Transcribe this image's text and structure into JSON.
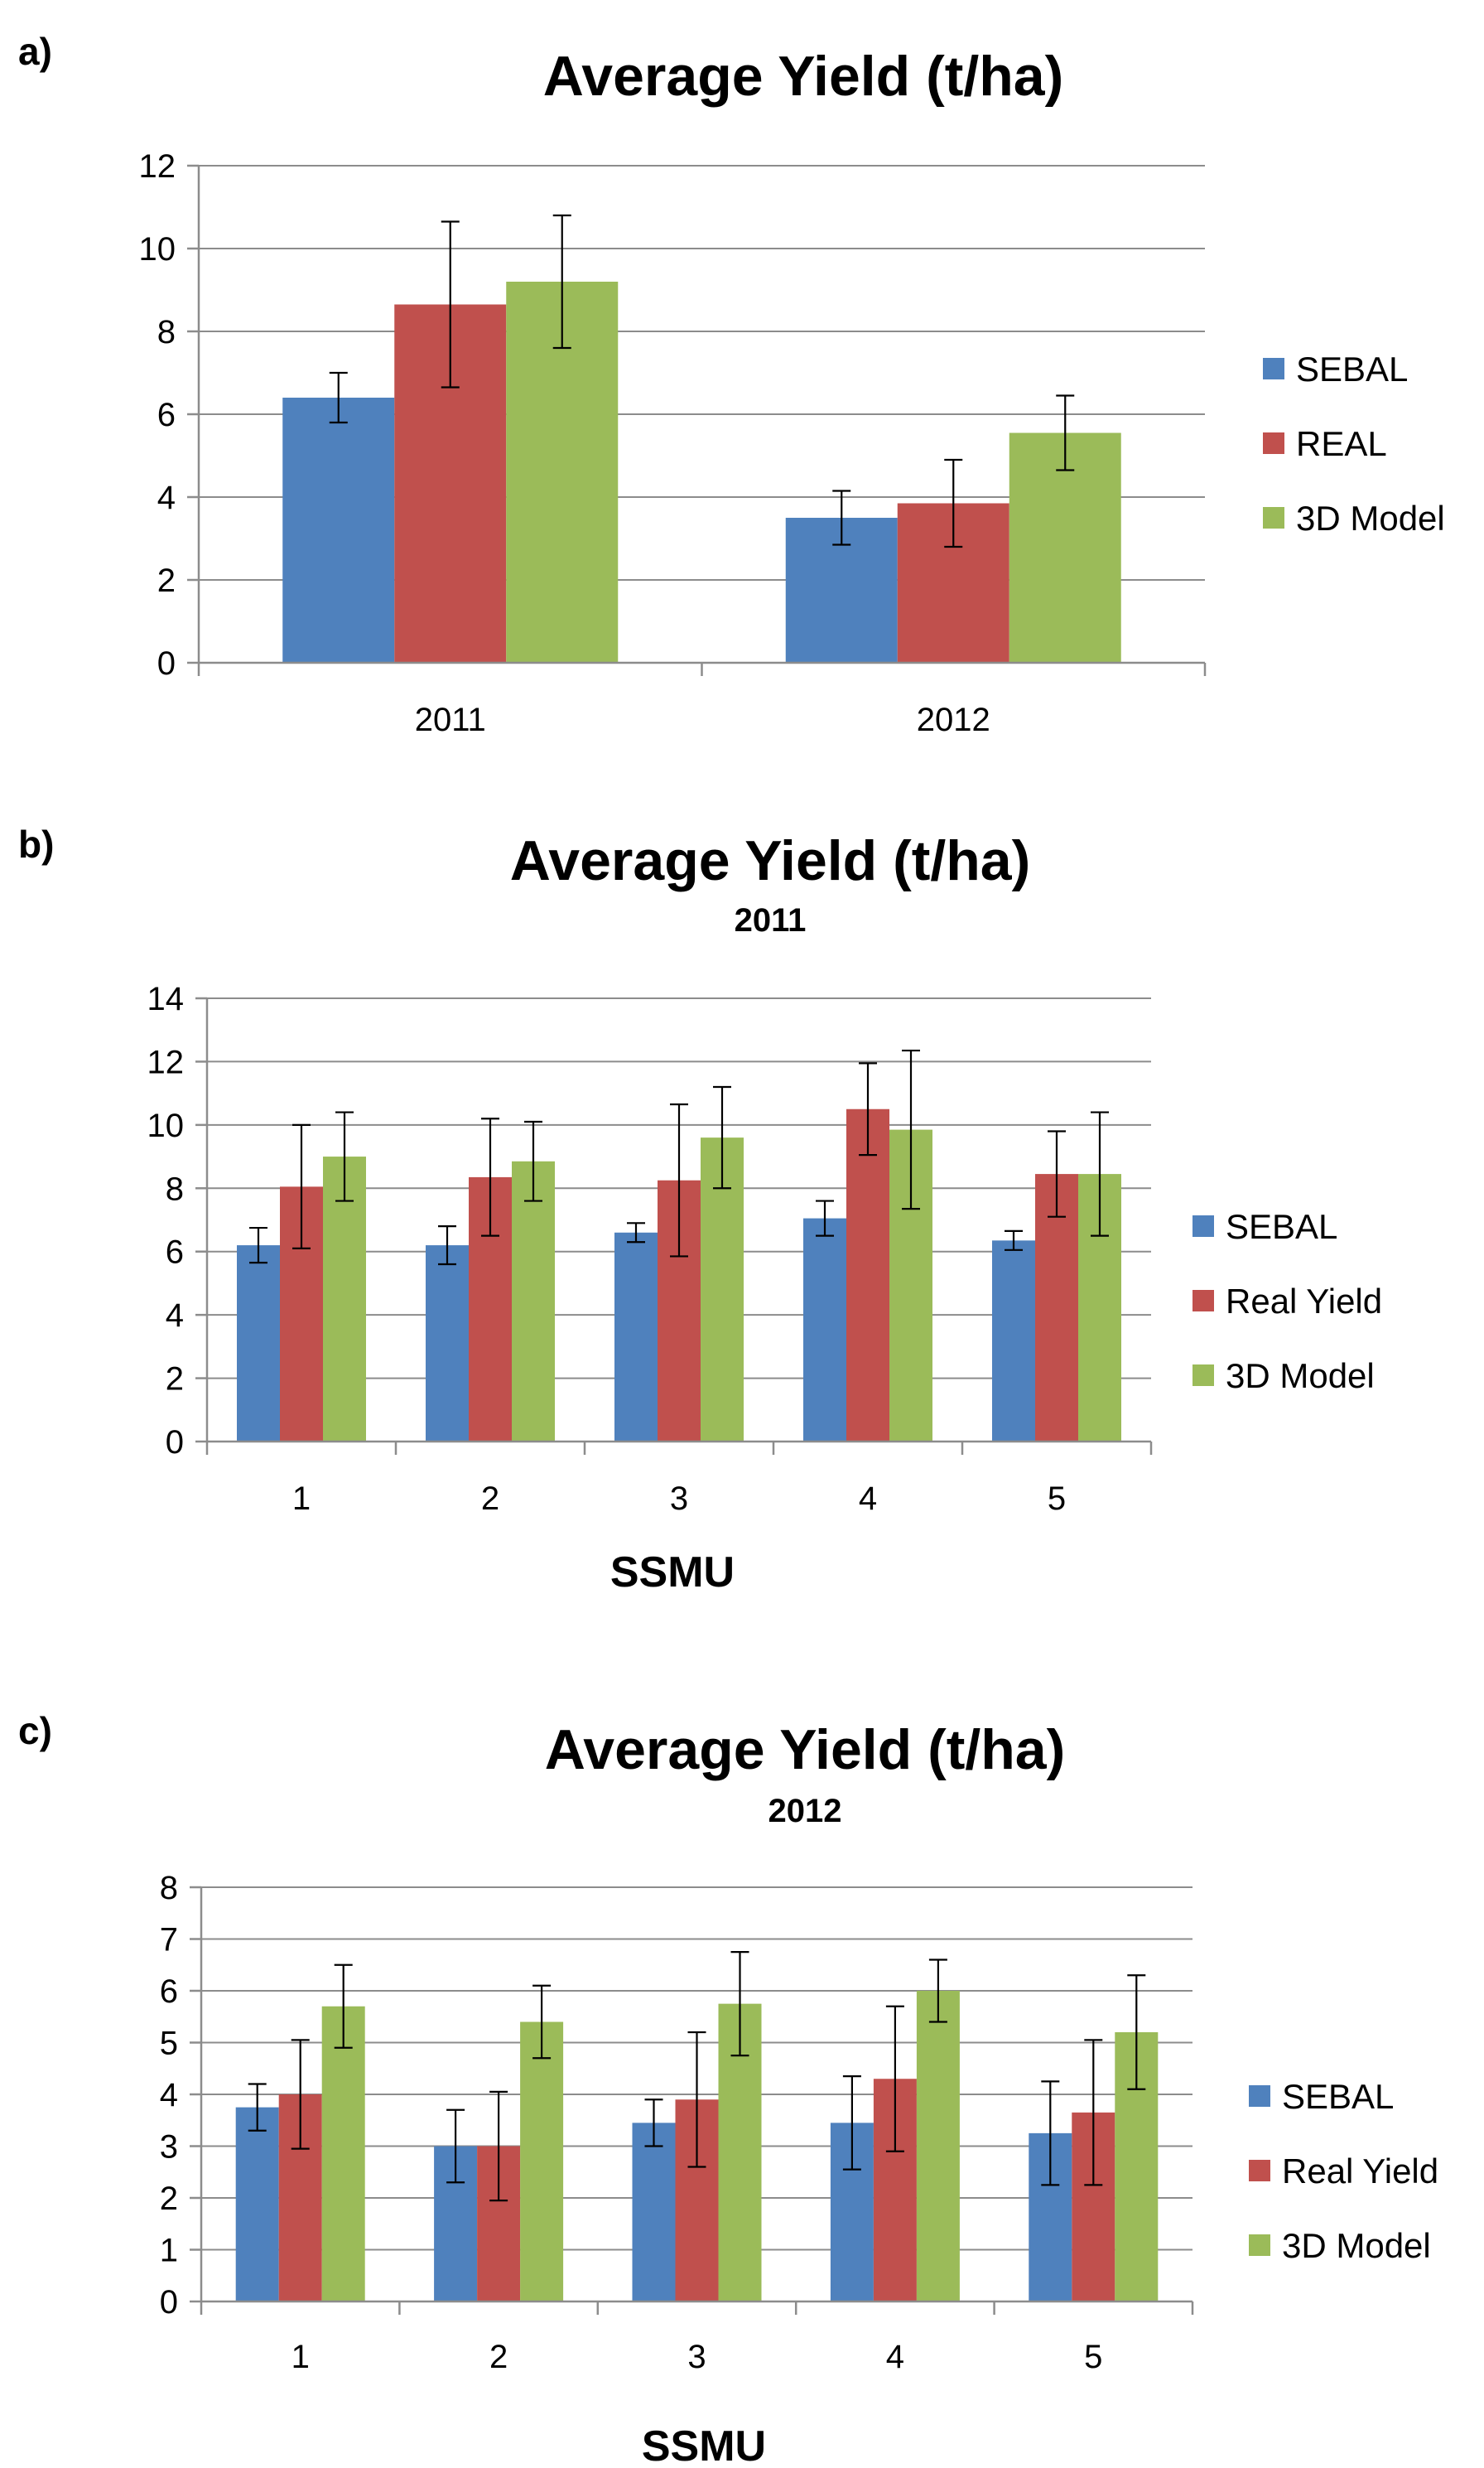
{
  "colors": {
    "sebal": "#4f81bd",
    "real": "#c0504d",
    "model": "#9bbb59"
  },
  "chart_data": [
    {
      "panel": "a)",
      "type": "bar",
      "title": "Average Yield (t/ha)",
      "subtitle": "",
      "xlabel": "",
      "ylabel": "",
      "ylim": [
        0,
        12
      ],
      "yticks": [
        0,
        2,
        4,
        6,
        8,
        10,
        12
      ],
      "categories": [
        "2011",
        "2012"
      ],
      "series": [
        {
          "name": "SEBAL",
          "color_key": "sebal",
          "values": [
            6.4,
            3.5
          ],
          "errors": [
            0.6,
            0.65
          ]
        },
        {
          "name": "REAL",
          "color_key": "real",
          "values": [
            8.65,
            3.85
          ],
          "errors": [
            2.0,
            1.05
          ]
        },
        {
          "name": "3D Model",
          "color_key": "model",
          "values": [
            9.2,
            5.55
          ],
          "errors": [
            1.6,
            0.9
          ]
        }
      ]
    },
    {
      "panel": "b)",
      "type": "bar",
      "title": "Average Yield (t/ha)",
      "subtitle": "2011",
      "xlabel": "SSMU",
      "ylabel": "",
      "ylim": [
        0,
        14
      ],
      "yticks": [
        0,
        2,
        4,
        6,
        8,
        10,
        12,
        14
      ],
      "categories": [
        "1",
        "2",
        "3",
        "4",
        "5"
      ],
      "series": [
        {
          "name": "SEBAL",
          "color_key": "sebal",
          "values": [
            6.2,
            6.2,
            6.6,
            7.05,
            6.35
          ],
          "errors": [
            0.55,
            0.6,
            0.3,
            0.55,
            0.3
          ]
        },
        {
          "name": "Real Yield",
          "color_key": "real",
          "values": [
            8.05,
            8.35,
            8.25,
            10.5,
            8.45
          ],
          "errors": [
            1.95,
            1.85,
            2.4,
            1.45,
            1.35
          ]
        },
        {
          "name": "3D Model",
          "color_key": "model",
          "values": [
            9.0,
            8.85,
            9.6,
            9.85,
            8.45
          ],
          "errors": [
            1.4,
            1.25,
            1.6,
            2.5,
            1.95
          ]
        }
      ]
    },
    {
      "panel": "c)",
      "type": "bar",
      "title": "Average Yield (t/ha)",
      "subtitle": "2012",
      "xlabel": "SSMU",
      "ylabel": "",
      "ylim": [
        0,
        8
      ],
      "yticks": [
        0,
        1,
        2,
        3,
        4,
        5,
        6,
        7,
        8
      ],
      "categories": [
        "1",
        "2",
        "3",
        "4",
        "5"
      ],
      "series": [
        {
          "name": "SEBAL",
          "color_key": "sebal",
          "values": [
            3.75,
            3.0,
            3.45,
            3.45,
            3.25
          ],
          "errors": [
            0.45,
            0.7,
            0.45,
            0.9,
            1.0
          ]
        },
        {
          "name": "Real Yield",
          "color_key": "real",
          "values": [
            4.0,
            3.0,
            3.9,
            4.3,
            3.65
          ],
          "errors": [
            1.05,
            1.05,
            1.3,
            1.4,
            1.4
          ]
        },
        {
          "name": "3D Model",
          "color_key": "model",
          "values": [
            5.7,
            5.4,
            5.75,
            6.0,
            5.2
          ],
          "errors": [
            0.8,
            0.7,
            1.0,
            0.6,
            1.1
          ]
        }
      ]
    }
  ]
}
